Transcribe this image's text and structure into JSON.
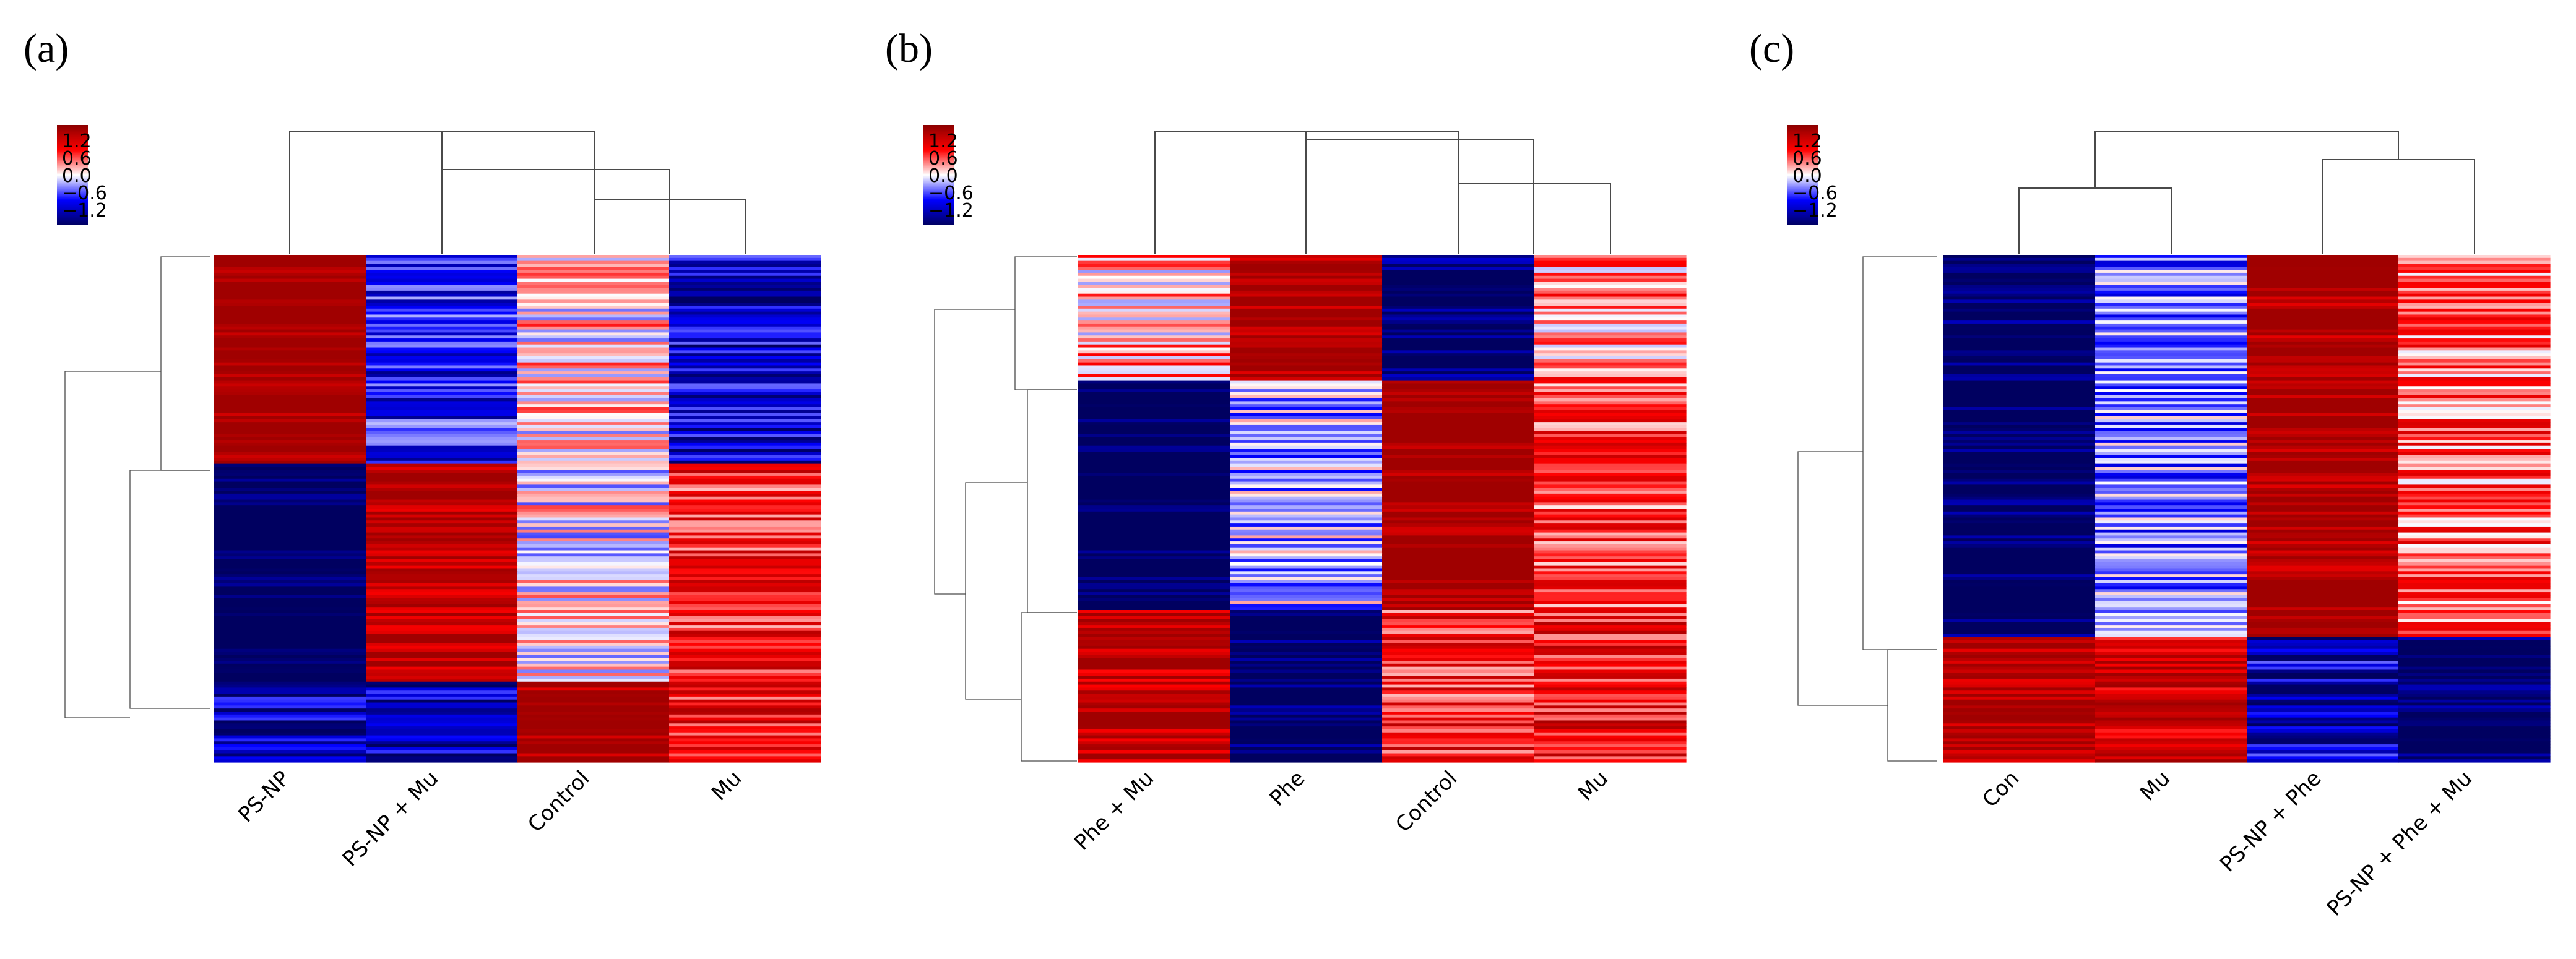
{
  "colors": {
    "high": "#a00000",
    "mid_high": "#ff0000",
    "zero": "#ffffff",
    "mid_low": "#0000ff",
    "low": "#000060"
  },
  "chart_data": [
    {
      "type": "heatmap",
      "panel_label": "(a)",
      "columns": [
        "PS-NP",
        "PS-NP + Mu",
        "Control",
        "Mu"
      ],
      "row_count": 170,
      "legend_ticks": [
        "1.2",
        "0.6",
        "0.0",
        "−0.6",
        "−1.2"
      ],
      "value_range": [
        -1.2,
        1.2
      ],
      "row_blocks": [
        {
          "rows": 70,
          "values": [
            1.3,
            -0.6,
            0.1,
            -0.8
          ]
        },
        {
          "rows": 73,
          "values": [
            -1.4,
            1.1,
            0.0,
            0.6
          ]
        },
        {
          "rows": 27,
          "values": [
            -0.9,
            -0.9,
            1.2,
            0.7
          ]
        }
      ]
    },
    {
      "type": "heatmap",
      "panel_label": "(b)",
      "columns": [
        "Phe + Mu",
        "Phe",
        "Control",
        "Mu"
      ],
      "row_count": 170,
      "legend_ticks": [
        "1.2",
        "0.6",
        "0.0",
        "−0.6",
        "−1.2"
      ],
      "value_range": [
        -1.2,
        1.2
      ],
      "row_blocks": [
        {
          "rows": 42,
          "values": [
            0.2,
            1.2,
            -1.2,
            0.3
          ]
        },
        {
          "rows": 77,
          "values": [
            -1.4,
            -0.2,
            1.3,
            0.5
          ]
        },
        {
          "rows": 51,
          "values": [
            1.0,
            -1.3,
            0.6,
            0.7
          ]
        }
      ]
    },
    {
      "type": "heatmap",
      "panel_label": "(c)",
      "columns": [
        "Con",
        "Mu",
        "PS-NP + Phe",
        "PS-NP + Phe + Mu"
      ],
      "row_count": 170,
      "legend_ticks": [
        "1.2",
        "0.6",
        "0.0",
        "−0.6",
        "−1.2"
      ],
      "value_range": [
        -1.2,
        1.2
      ],
      "row_blocks": [
        {
          "rows": 128,
          "values": [
            -1.3,
            -0.3,
            1.2,
            0.4
          ]
        },
        {
          "rows": 42,
          "values": [
            1.1,
            0.9,
            -0.8,
            -1.2
          ]
        }
      ]
    }
  ]
}
